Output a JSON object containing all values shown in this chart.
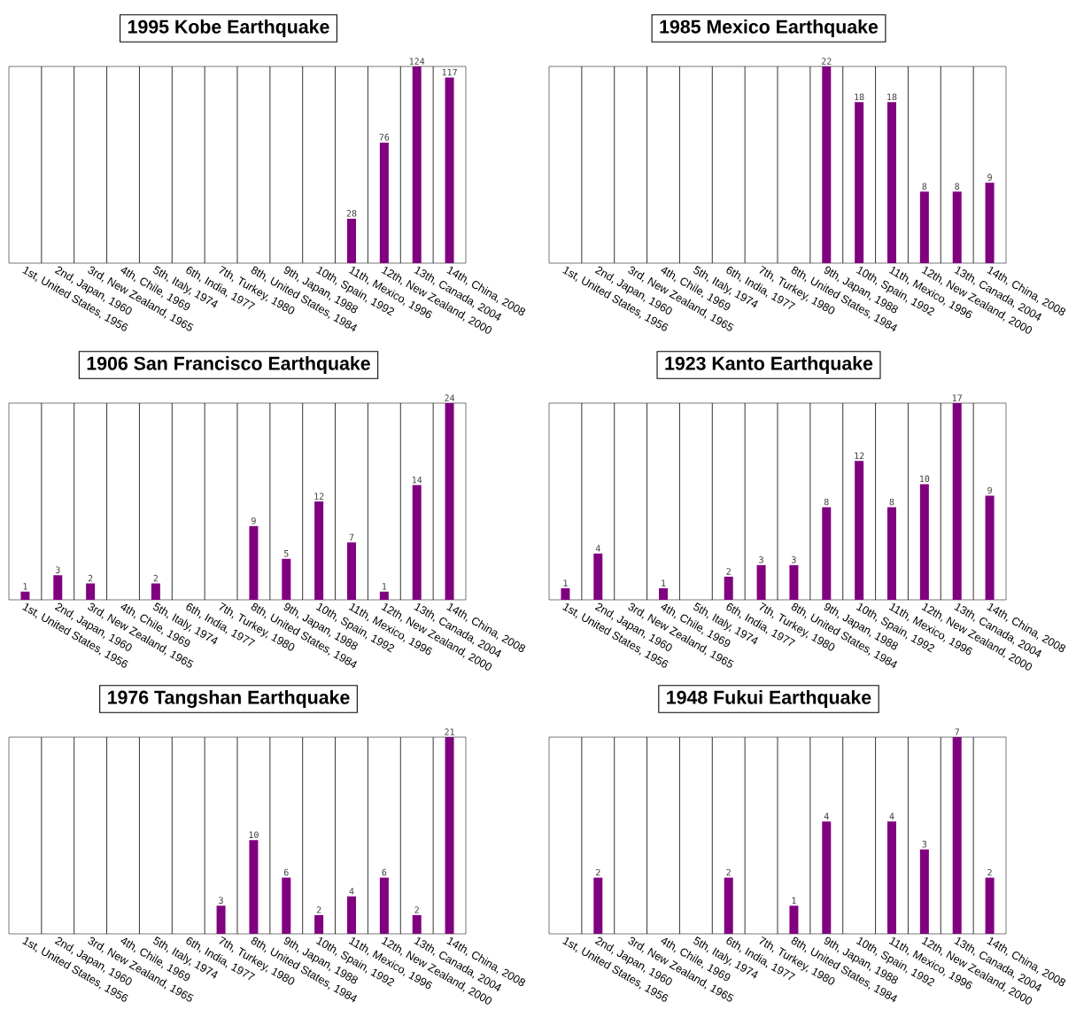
{
  "chart_data": [
    {
      "type": "bar",
      "title": "1995 Kobe Earthquake",
      "categories": [
        "1st, United States, 1956",
        "2nd, Japan, 1960",
        "3rd, New Zealand, 1965",
        "4th, Chile, 1969",
        "5th, Italy, 1974",
        "6th, India, 1977",
        "7th, Turkey, 1980",
        "8th, United States, 1984",
        "9th, Japan, 1988",
        "10th, Spain, 1992",
        "11th, Mexico, 1996",
        "12th, New Zealand, 2000",
        "13th, Canada, 2004",
        "14th, China, 2008"
      ],
      "values": [
        null,
        null,
        null,
        null,
        null,
        null,
        null,
        null,
        null,
        null,
        28,
        76,
        124,
        117
      ],
      "color": "#800080",
      "data_labels": true,
      "grid": "x"
    },
    {
      "type": "bar",
      "title": "1985 Mexico Earthquake",
      "categories": [
        "1st, United States, 1956",
        "2nd, Japan, 1960",
        "3rd, New Zealand, 1965",
        "4th, Chile, 1969",
        "5th, Italy, 1974",
        "6th, India, 1977",
        "7th, Turkey, 1980",
        "8th, United States, 1984",
        "9th, Japan, 1988",
        "10th, Spain, 1992",
        "11th, Mexico, 1996",
        "12th, New Zealand, 2000",
        "13th, Canada, 2004",
        "14th, China, 2008"
      ],
      "values": [
        null,
        null,
        null,
        null,
        null,
        null,
        null,
        null,
        22,
        18,
        18,
        8,
        8,
        9
      ],
      "color": "#800080",
      "data_labels": true,
      "grid": "x"
    },
    {
      "type": "bar",
      "title": "1906 San Francisco Earthquake",
      "categories": [
        "1st, United States, 1956",
        "2nd, Japan, 1960",
        "3rd, New Zealand, 1965",
        "4th, Chile, 1969",
        "5th, Italy, 1974",
        "6th, India, 1977",
        "7th, Turkey, 1980",
        "8th, United States, 1984",
        "9th, Japan, 1988",
        "10th, Spain, 1992",
        "11th, Mexico, 1996",
        "12th, New Zealand, 2000",
        "13th, Canada, 2004",
        "14th, China, 2008"
      ],
      "values": [
        1,
        3,
        2,
        null,
        2,
        null,
        null,
        9,
        5,
        12,
        7,
        1,
        14,
        24
      ],
      "color": "#800080",
      "data_labels": true,
      "grid": "x"
    },
    {
      "type": "bar",
      "title": "1923 Kanto Earthquake",
      "categories": [
        "1st, United States, 1956",
        "2nd, Japan, 1960",
        "3rd, New Zealand, 1965",
        "4th, Chile, 1969",
        "5th, Italy, 1974",
        "6th, India, 1977",
        "7th, Turkey, 1980",
        "8th, United States, 1984",
        "9th, Japan, 1988",
        "10th, Spain, 1992",
        "11th, Mexico, 1996",
        "12th, New Zealand, 2000",
        "13th, Canada, 2004",
        "14th, China, 2008"
      ],
      "values": [
        1,
        4,
        null,
        1,
        null,
        2,
        3,
        3,
        8,
        12,
        8,
        10,
        17,
        9
      ],
      "color": "#800080",
      "data_labels": true,
      "grid": "x"
    },
    {
      "type": "bar",
      "title": "1976 Tangshan Earthquake",
      "categories": [
        "1st, United States, 1956",
        "2nd, Japan, 1960",
        "3rd, New Zealand, 1965",
        "4th, Chile, 1969",
        "5th, Italy, 1974",
        "6th, India, 1977",
        "7th, Turkey, 1980",
        "8th, United States, 1984",
        "9th, Japan, 1988",
        "10th, Spain, 1992",
        "11th, Mexico, 1996",
        "12th, New Zealand, 2000",
        "13th, Canada, 2004",
        "14th, China, 2008"
      ],
      "values": [
        null,
        null,
        null,
        null,
        null,
        null,
        3,
        10,
        6,
        2,
        4,
        6,
        2,
        21
      ],
      "color": "#800080",
      "data_labels": true,
      "grid": "x"
    },
    {
      "type": "bar",
      "title": "1948 Fukui Earthquake",
      "categories": [
        "1st, United States, 1956",
        "2nd, Japan, 1960",
        "3rd, New Zealand, 1965",
        "4th, Chile, 1969",
        "5th, Italy, 1974",
        "6th, India, 1977",
        "7th, Turkey, 1980",
        "8th, United States, 1984",
        "9th, Japan, 1988",
        "10th, Spain, 1992",
        "11th, Mexico, 1996",
        "12th, New Zealand, 2000",
        "13th, Canada, 2004",
        "14th, China, 2008"
      ],
      "values": [
        null,
        2,
        null,
        null,
        null,
        2,
        null,
        1,
        4,
        null,
        4,
        3,
        7,
        2
      ],
      "color": "#800080",
      "data_labels": true,
      "grid": "x"
    }
  ]
}
